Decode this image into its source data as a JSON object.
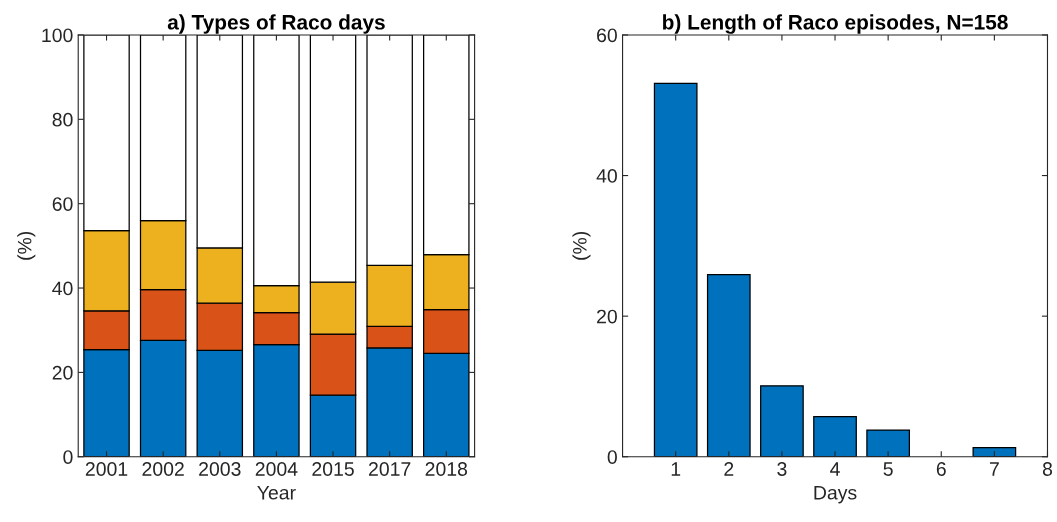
{
  "chart_data": [
    {
      "type": "bar",
      "title": "a) Types of Raco days",
      "xlabel": "Year",
      "ylabel": "(%)",
      "stacked": true,
      "categories": [
        "2001",
        "2002",
        "2003",
        "2004",
        "2015",
        "2017",
        "2018"
      ],
      "series": [
        {
          "color": "#0072bd",
          "values": [
            25.4,
            27.6,
            25.2,
            26.6,
            14.6,
            25.8,
            24.5
          ]
        },
        {
          "color": "#d95319",
          "values": [
            9.2,
            12.0,
            11.2,
            7.6,
            14.5,
            5.1,
            10.4
          ]
        },
        {
          "color": "#edb120",
          "values": [
            19.0,
            16.4,
            13.1,
            6.4,
            12.3,
            14.5,
            13.0
          ]
        },
        {
          "color": "#ffffff",
          "values": [
            46.4,
            44.0,
            50.5,
            59.4,
            58.6,
            54.6,
            52.1
          ]
        }
      ],
      "ylim": [
        0,
        100
      ],
      "yticks": [
        0,
        20,
        40,
        60,
        80,
        100
      ],
      "grid": false,
      "legend": false
    },
    {
      "type": "bar",
      "title": "b) Length of Raco episodes, N=158",
      "xlabel": "Days",
      "ylabel": "(%)",
      "x": [
        1,
        2,
        3,
        4,
        5,
        6,
        7
      ],
      "values": [
        53.1,
        25.9,
        10.1,
        5.7,
        3.8,
        null,
        1.3
      ],
      "color": "#0072bd",
      "xlim": [
        0,
        8
      ],
      "xticks": [
        1,
        2,
        3,
        4,
        5,
        6,
        7,
        8
      ],
      "ylim": [
        0,
        60
      ],
      "yticks": [
        0,
        20,
        40,
        60
      ],
      "grid": false,
      "legend": false
    }
  ]
}
